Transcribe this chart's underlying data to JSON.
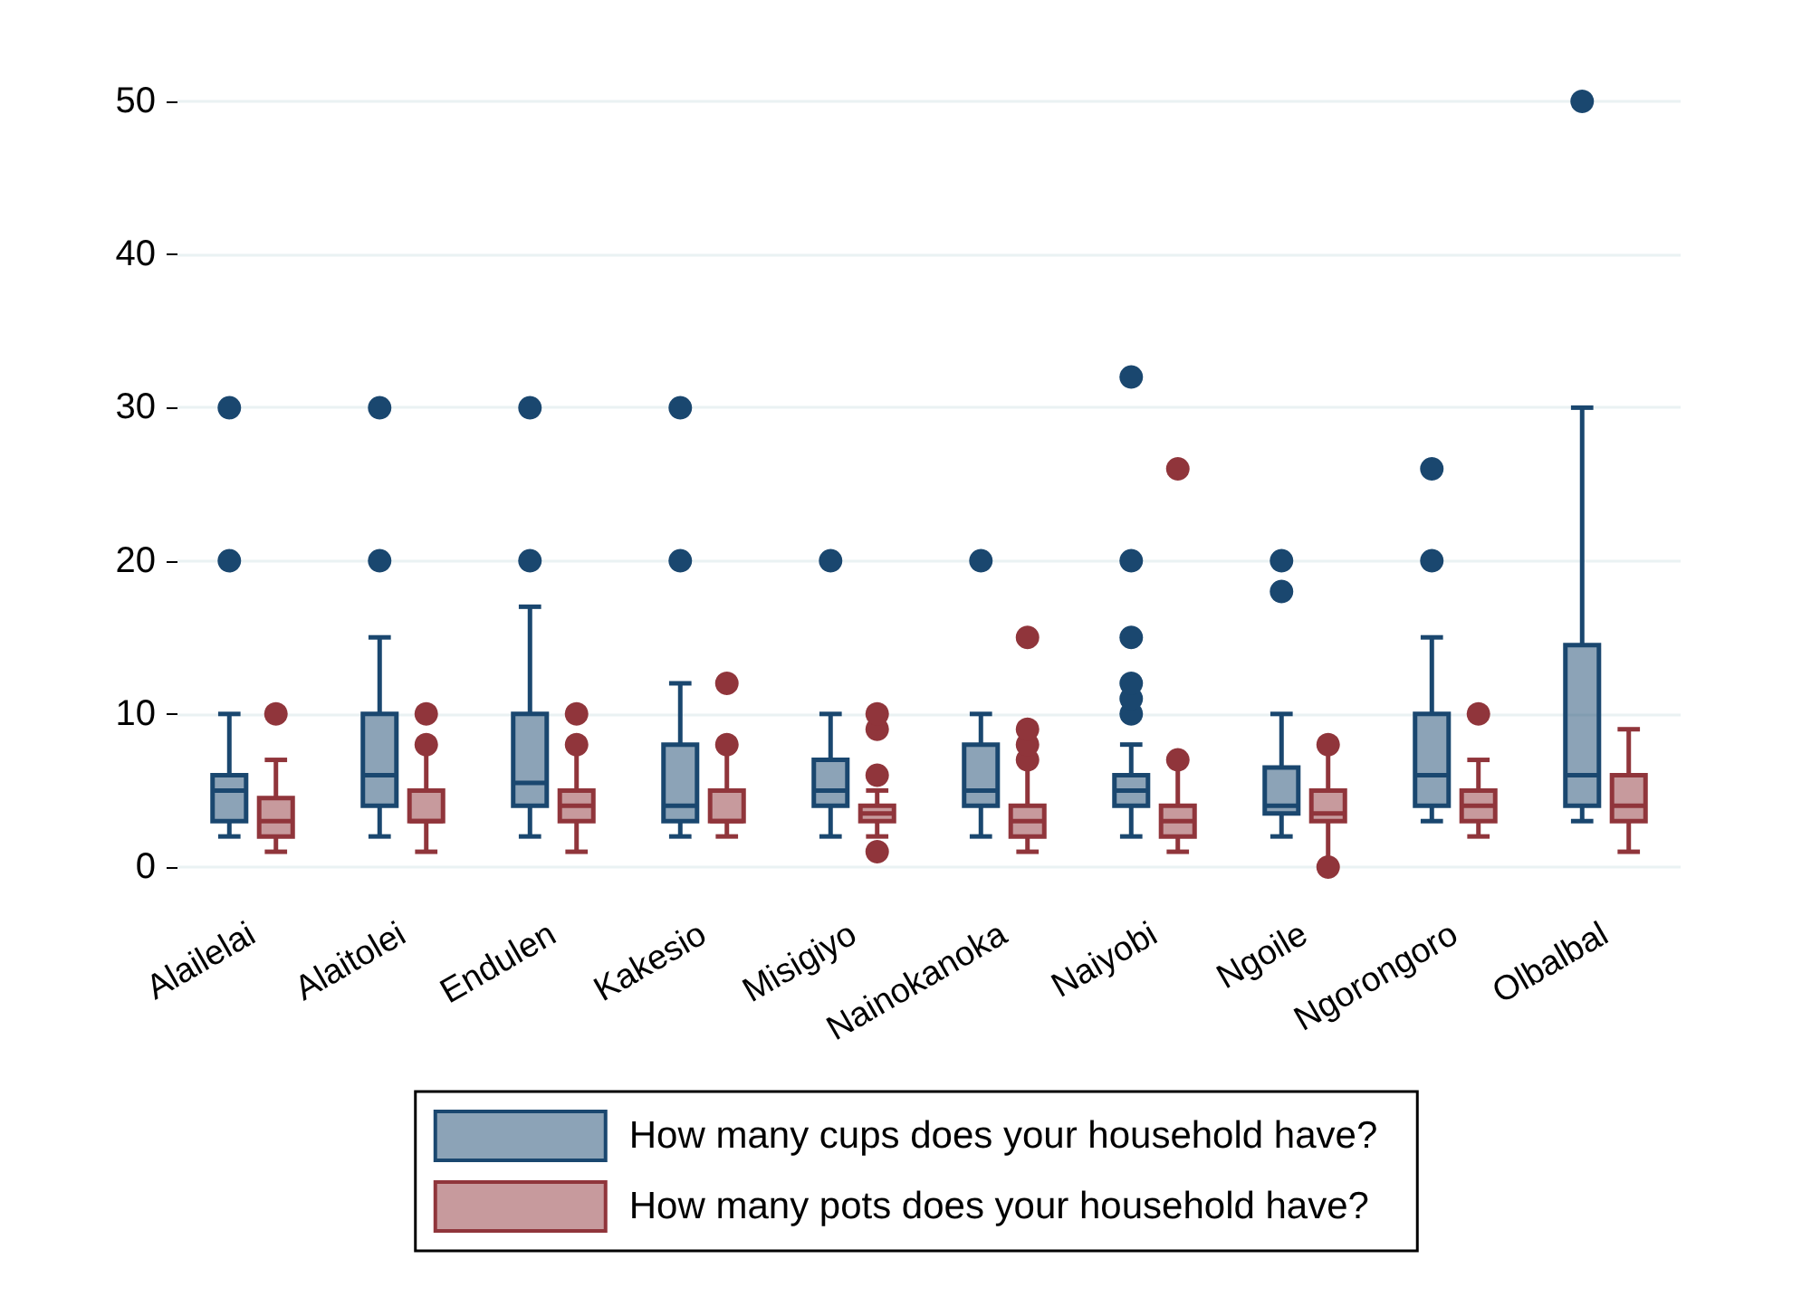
{
  "chart_data": {
    "type": "box",
    "categories": [
      "Alailelai",
      "Alaitolei",
      "Endulen",
      "Kakesio",
      "Misigiyo",
      "Nainokanoka",
      "Naiyobi",
      "Ngoile",
      "Ngorongoro",
      "Olbalbal"
    ],
    "series": [
      {
        "name": "How many cups does your household have?",
        "color": "#1a476f",
        "boxes": [
          {
            "low": 2,
            "q1": 3,
            "median": 5,
            "q3": 6,
            "high": 10,
            "outliers": [
              20,
              30
            ]
          },
          {
            "low": 2,
            "q1": 4,
            "median": 6,
            "q3": 10,
            "high": 15,
            "outliers": [
              20,
              30
            ]
          },
          {
            "low": 2,
            "q1": 4,
            "median": 5.5,
            "q3": 10,
            "high": 17,
            "outliers": [
              20,
              30
            ]
          },
          {
            "low": 2,
            "q1": 3,
            "median": 4,
            "q3": 8,
            "high": 12,
            "outliers": [
              20,
              30
            ]
          },
          {
            "low": 2,
            "q1": 4,
            "median": 5,
            "q3": 7,
            "high": 10,
            "outliers": [
              20
            ]
          },
          {
            "low": 2,
            "q1": 4,
            "median": 5,
            "q3": 8,
            "high": 10,
            "outliers": [
              20
            ]
          },
          {
            "low": 2,
            "q1": 4,
            "median": 5,
            "q3": 6,
            "high": 8,
            "outliers": [
              10,
              11,
              12,
              15,
              20,
              32
            ]
          },
          {
            "low": 2,
            "q1": 3.5,
            "median": 4,
            "q3": 6.5,
            "high": 10,
            "outliers": [
              18,
              20
            ]
          },
          {
            "low": 3,
            "q1": 4,
            "median": 6,
            "q3": 10,
            "high": 15,
            "outliers": [
              20,
              26
            ]
          },
          {
            "low": 3,
            "q1": 4,
            "median": 6,
            "q3": 14.5,
            "high": 30,
            "outliers": [
              50
            ]
          }
        ]
      },
      {
        "name": "How many pots does your household have?",
        "color": "#90353b",
        "boxes": [
          {
            "low": 1,
            "q1": 2,
            "median": 3,
            "q3": 4.5,
            "high": 7,
            "outliers": [
              10
            ]
          },
          {
            "low": 1,
            "q1": 3,
            "median": 3,
            "q3": 5,
            "high": 8,
            "outliers": [
              8,
              10
            ]
          },
          {
            "low": 1,
            "q1": 3,
            "median": 4,
            "q3": 5,
            "high": 8,
            "outliers": [
              8,
              10
            ]
          },
          {
            "low": 2,
            "q1": 3,
            "median": 3,
            "q3": 5,
            "high": 8,
            "outliers": [
              8,
              12
            ]
          },
          {
            "low": 2,
            "q1": 3,
            "median": 3.5,
            "q3": 4,
            "high": 5,
            "outliers": [
              1,
              6,
              9,
              10
            ]
          },
          {
            "low": 1,
            "q1": 2,
            "median": 3,
            "q3": 4,
            "high": 7,
            "outliers": [
              7,
              8,
              9,
              15
            ]
          },
          {
            "low": 1,
            "q1": 2,
            "median": 3,
            "q3": 4,
            "high": 7,
            "outliers": [
              7,
              26
            ]
          },
          {
            "low": 0,
            "q1": 3,
            "median": 3.5,
            "q3": 5,
            "high": 8,
            "outliers": [
              0,
              8
            ]
          },
          {
            "low": 2,
            "q1": 3,
            "median": 4,
            "q3": 5,
            "high": 7,
            "outliers": [
              10
            ]
          },
          {
            "low": 1,
            "q1": 3,
            "median": 4,
            "q3": 6,
            "high": 9
          }
        ]
      }
    ],
    "ylim": [
      0,
      50
    ],
    "yticks": [
      0,
      10,
      20,
      30,
      40,
      50
    ],
    "grid": "y",
    "legend": "bottom",
    "marker": "circle"
  }
}
